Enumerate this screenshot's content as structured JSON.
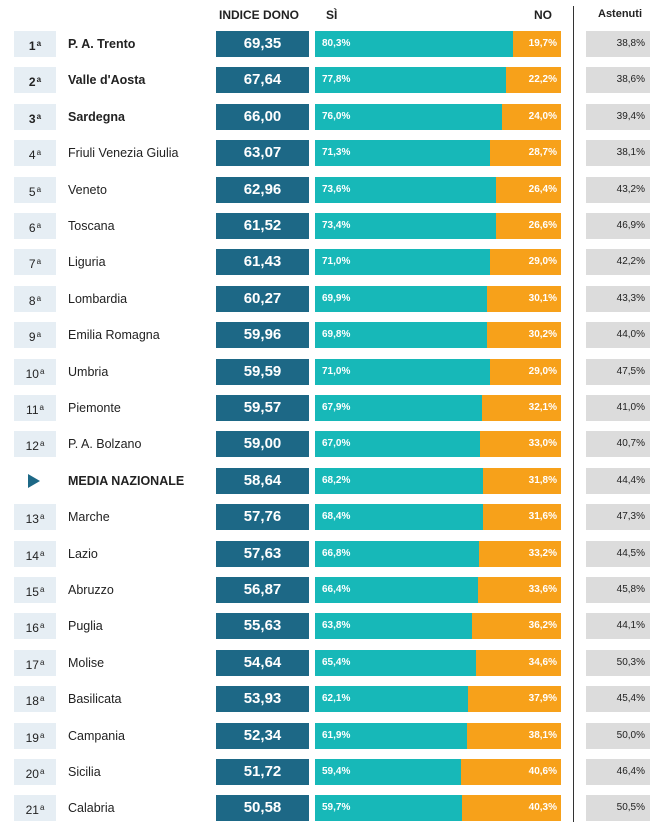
{
  "headers": {
    "indice": "INDICE DONO",
    "si": "SÌ",
    "no": "NO",
    "astenuti": "Astenuti"
  },
  "colors": {
    "indice": "#1d6886",
    "si": "#17b8b8",
    "no": "#f7a11a",
    "rank_bg": "#e6eef4",
    "astenuti_bg": "#dcdcdc"
  },
  "chart_data": {
    "type": "table",
    "columns": [
      "rank",
      "region",
      "indice_dono",
      "si",
      "no",
      "astenuti"
    ],
    "rows": [
      {
        "rank": "1",
        "region": "P. A. Trento",
        "indice": "69,35",
        "si": "80,3%",
        "no": "19,7%",
        "astenuti": "38,8%",
        "si_value": 80.3,
        "bold": true
      },
      {
        "rank": "2",
        "region": "Valle d'Aosta",
        "indice": "67,64",
        "si": "77,8%",
        "no": "22,2%",
        "astenuti": "38,6%",
        "si_value": 77.8,
        "bold": true
      },
      {
        "rank": "3",
        "region": "Sardegna",
        "indice": "66,00",
        "si": "76,0%",
        "no": "24,0%",
        "astenuti": "39,4%",
        "si_value": 76.0,
        "bold": true
      },
      {
        "rank": "4",
        "region": "Friuli Venezia Giulia",
        "indice": "63,07",
        "si": "71,3%",
        "no": "28,7%",
        "astenuti": "38,1%",
        "si_value": 71.3,
        "bold": false
      },
      {
        "rank": "5",
        "region": "Veneto",
        "indice": "62,96",
        "si": "73,6%",
        "no": "26,4%",
        "astenuti": "43,2%",
        "si_value": 73.6,
        "bold": false
      },
      {
        "rank": "6",
        "region": "Toscana",
        "indice": "61,52",
        "si": "73,4%",
        "no": "26,6%",
        "astenuti": "46,9%",
        "si_value": 73.4,
        "bold": false
      },
      {
        "rank": "7",
        "region": "Liguria",
        "indice": "61,43",
        "si": "71,0%",
        "no": "29,0%",
        "astenuti": "42,2%",
        "si_value": 71.0,
        "bold": false
      },
      {
        "rank": "8",
        "region": "Lombardia",
        "indice": "60,27",
        "si": "69,9%",
        "no": "30,1%",
        "astenuti": "43,3%",
        "si_value": 69.9,
        "bold": false
      },
      {
        "rank": "9",
        "region": "Emilia Romagna",
        "indice": "59,96",
        "si": "69,8%",
        "no": "30,2%",
        "astenuti": "44,0%",
        "si_value": 69.8,
        "bold": false
      },
      {
        "rank": "10",
        "region": "Umbria",
        "indice": "59,59",
        "si": "71,0%",
        "no": "29,0%",
        "astenuti": "47,5%",
        "si_value": 71.0,
        "bold": false
      },
      {
        "rank": "11",
        "region": "Piemonte",
        "indice": "59,57",
        "si": "67,9%",
        "no": "32,1%",
        "astenuti": "41,0%",
        "si_value": 67.9,
        "bold": false
      },
      {
        "rank": "12",
        "region": "P. A. Bolzano",
        "indice": "59,00",
        "si": "67,0%",
        "no": "33,0%",
        "astenuti": "40,7%",
        "si_value": 67.0,
        "bold": false
      },
      {
        "rank": "",
        "region": "MEDIA NAZIONALE",
        "indice": "58,64",
        "si": "68,2%",
        "no": "31,8%",
        "astenuti": "44,4%",
        "si_value": 68.2,
        "bold": true,
        "national": true
      },
      {
        "rank": "13",
        "region": "Marche",
        "indice": "57,76",
        "si": "68,4%",
        "no": "31,6%",
        "astenuti": "47,3%",
        "si_value": 68.4,
        "bold": false
      },
      {
        "rank": "14",
        "region": "Lazio",
        "indice": "57,63",
        "si": "66,8%",
        "no": "33,2%",
        "astenuti": "44,5%",
        "si_value": 66.8,
        "bold": false
      },
      {
        "rank": "15",
        "region": "Abruzzo",
        "indice": "56,87",
        "si": "66,4%",
        "no": "33,6%",
        "astenuti": "45,8%",
        "si_value": 66.4,
        "bold": false
      },
      {
        "rank": "16",
        "region": "Puglia",
        "indice": "55,63",
        "si": "63,8%",
        "no": "36,2%",
        "astenuti": "44,1%",
        "si_value": 63.8,
        "bold": false
      },
      {
        "rank": "17",
        "region": "Molise",
        "indice": "54,64",
        "si": "65,4%",
        "no": "34,6%",
        "astenuti": "50,3%",
        "si_value": 65.4,
        "bold": false
      },
      {
        "rank": "18",
        "region": "Basilicata",
        "indice": "53,93",
        "si": "62,1%",
        "no": "37,9%",
        "astenuti": "45,4%",
        "si_value": 62.1,
        "bold": false
      },
      {
        "rank": "19",
        "region": "Campania",
        "indice": "52,34",
        "si": "61,9%",
        "no": "38,1%",
        "astenuti": "50,0%",
        "si_value": 61.9,
        "bold": false
      },
      {
        "rank": "20",
        "region": "Sicilia",
        "indice": "51,72",
        "si": "59,4%",
        "no": "40,6%",
        "astenuti": "46,4%",
        "si_value": 59.4,
        "bold": false
      },
      {
        "rank": "21",
        "region": "Calabria",
        "indice": "50,58",
        "si": "59,7%",
        "no": "40,3%",
        "astenuti": "50,5%",
        "si_value": 59.7,
        "bold": false
      }
    ]
  }
}
